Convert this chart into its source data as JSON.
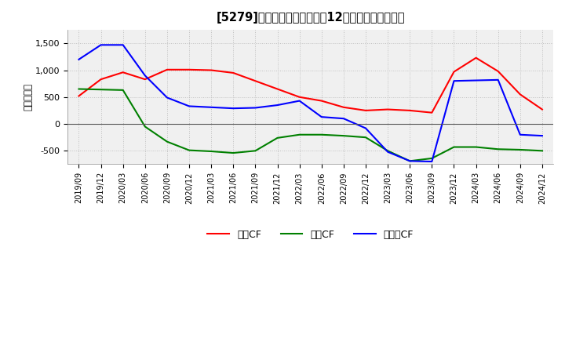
{
  "title": "　3、5279、 キャッシュフローの12か月移動合計の推移",
  "title_text": "[5279]　キャッシュフローの12か月移動合計の推移",
  "ylabel": "（百万円）",
  "x_labels": [
    "2019/09",
    "2019/12",
    "2020/03",
    "2020/06",
    "2020/09",
    "2020/12",
    "2021/03",
    "2021/06",
    "2021/09",
    "2021/12",
    "2022/03",
    "2022/06",
    "2022/09",
    "2022/12",
    "2023/03",
    "2023/06",
    "2023/09",
    "2023/12",
    "2024/03",
    "2024/06",
    "2024/09",
    "2024/12"
  ],
  "operating_cf": [
    520,
    830,
    960,
    830,
    1010,
    1010,
    1000,
    950,
    800,
    650,
    500,
    430,
    310,
    250,
    270,
    250,
    210,
    970,
    1230,
    980,
    550,
    270
  ],
  "investing_cf": [
    650,
    640,
    630,
    -50,
    -330,
    -490,
    -510,
    -540,
    -500,
    -260,
    -200,
    -200,
    -220,
    -250,
    -500,
    -690,
    -640,
    -430,
    -430,
    -470,
    -480,
    -500
  ],
  "free_cf": [
    1200,
    1470,
    1470,
    900,
    490,
    330,
    310,
    290,
    300,
    350,
    430,
    130,
    100,
    -80,
    -520,
    -690,
    -700,
    800,
    810,
    820,
    -200,
    -220
  ],
  "colors": {
    "operating": "#ff0000",
    "investing": "#008000",
    "free": "#0000ff"
  },
  "ylim": [
    -750,
    1750
  ],
  "yticks": [
    -500,
    0,
    500,
    1000,
    1500
  ],
  "legend_labels": [
    "営業CF",
    "投資CF",
    "フリーCF"
  ],
  "background_color": "#ffffff",
  "plot_background": "#f0f0f0",
  "grid_color": "#bbbbbb",
  "linewidth": 1.5
}
